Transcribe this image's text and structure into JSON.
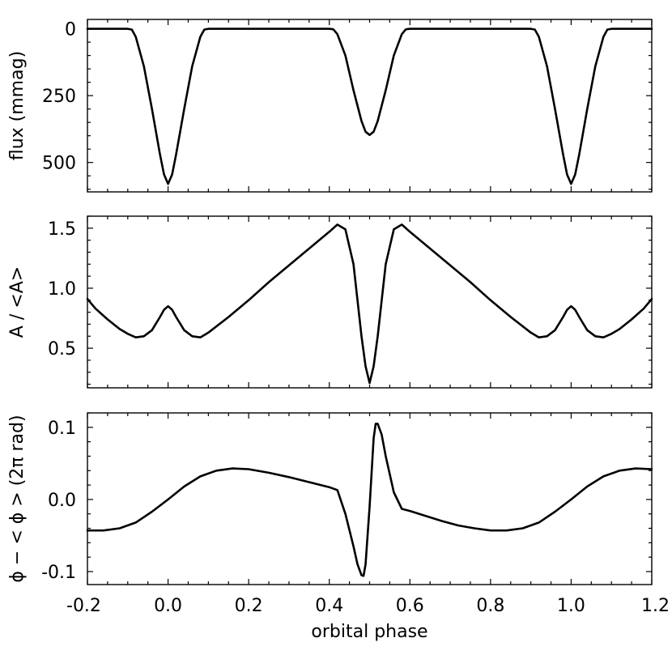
{
  "chart_data": [
    {
      "type": "line",
      "ylabel": "flux (mmag)",
      "xlim": [
        -0.2,
        1.2
      ],
      "ylim": [
        610,
        -35
      ],
      "y_inverted": true,
      "x_ticks": [
        -0.2,
        0.0,
        0.2,
        0.4,
        0.6,
        0.8,
        1.0,
        1.2
      ],
      "y_ticks": [
        0,
        250,
        500
      ],
      "y_tick_labels": [
        "0",
        "250",
        "500"
      ],
      "series": [
        {
          "x": [
            -0.2,
            -0.1,
            -0.09,
            -0.08,
            -0.06,
            -0.04,
            -0.02,
            -0.01,
            0.0,
            0.01,
            0.02,
            0.04,
            0.06,
            0.08,
            0.09,
            0.1,
            0.2,
            0.3,
            0.4,
            0.41,
            0.42,
            0.44,
            0.46,
            0.48,
            0.49,
            0.5,
            0.51,
            0.52,
            0.54,
            0.56,
            0.58,
            0.59,
            0.6,
            0.7,
            0.8,
            0.9,
            0.91,
            0.92,
            0.94,
            0.96,
            0.98,
            0.99,
            1.0,
            1.01,
            1.02,
            1.04,
            1.06,
            1.08,
            1.09,
            1.1,
            1.2
          ],
          "y": [
            0,
            0,
            3,
            30,
            140,
            300,
            470,
            545,
            580,
            545,
            470,
            300,
            140,
            30,
            3,
            0,
            0,
            0,
            0,
            2,
            20,
            100,
            230,
            345,
            385,
            397,
            385,
            345,
            230,
            100,
            20,
            2,
            0,
            0,
            0,
            0,
            3,
            30,
            140,
            300,
            470,
            545,
            580,
            545,
            470,
            300,
            140,
            30,
            3,
            0,
            0
          ]
        }
      ]
    },
    {
      "type": "line",
      "ylabel": "A / <A>",
      "xlim": [
        -0.2,
        1.2
      ],
      "ylim": [
        0.17,
        1.6
      ],
      "x_ticks": [
        -0.2,
        0.0,
        0.2,
        0.4,
        0.6,
        0.8,
        1.0,
        1.2
      ],
      "y_ticks": [
        0.5,
        1.0,
        1.5
      ],
      "y_tick_labels": [
        "0.5",
        "1.0",
        "1.5"
      ],
      "series": [
        {
          "x": [
            -0.2,
            -0.18,
            -0.15,
            -0.12,
            -0.1,
            -0.08,
            -0.06,
            -0.04,
            -0.02,
            -0.01,
            0.0,
            0.01,
            0.02,
            0.04,
            0.06,
            0.08,
            0.1,
            0.15,
            0.2,
            0.25,
            0.3,
            0.35,
            0.4,
            0.42,
            0.44,
            0.46,
            0.48,
            0.49,
            0.5,
            0.51,
            0.52,
            0.54,
            0.56,
            0.58,
            0.6,
            0.65,
            0.7,
            0.75,
            0.8,
            0.85,
            0.9,
            0.92,
            0.94,
            0.96,
            0.98,
            0.99,
            1.0,
            1.01,
            1.02,
            1.04,
            1.06,
            1.08,
            1.1,
            1.12,
            1.15,
            1.18,
            1.2
          ],
          "y": [
            0.91,
            0.83,
            0.74,
            0.66,
            0.62,
            0.59,
            0.6,
            0.65,
            0.76,
            0.82,
            0.85,
            0.82,
            0.76,
            0.65,
            0.6,
            0.59,
            0.63,
            0.76,
            0.9,
            1.05,
            1.19,
            1.33,
            1.47,
            1.53,
            1.49,
            1.2,
            0.6,
            0.35,
            0.21,
            0.35,
            0.6,
            1.2,
            1.49,
            1.53,
            1.47,
            1.33,
            1.19,
            1.05,
            0.9,
            0.76,
            0.63,
            0.59,
            0.6,
            0.65,
            0.76,
            0.82,
            0.85,
            0.82,
            0.76,
            0.65,
            0.6,
            0.59,
            0.62,
            0.66,
            0.74,
            0.83,
            0.91
          ]
        }
      ]
    },
    {
      "type": "line",
      "ylabel": "ϕ − < ϕ >  (2π rad)",
      "xlabel": "orbital phase",
      "xlim": [
        -0.2,
        1.2
      ],
      "ylim": [
        -0.118,
        0.12
      ],
      "x_ticks": [
        -0.2,
        0.0,
        0.2,
        0.4,
        0.6,
        0.8,
        1.0,
        1.2
      ],
      "x_tick_labels": [
        "-0.2",
        "0.0",
        "0.2",
        "0.4",
        "0.6",
        "0.8",
        "1.0",
        "1.2"
      ],
      "y_ticks": [
        -0.1,
        0.0,
        0.1
      ],
      "y_tick_labels": [
        "-0.1",
        "0.0",
        "0.1"
      ],
      "series": [
        {
          "x": [
            -0.2,
            -0.16,
            -0.12,
            -0.08,
            -0.04,
            0.0,
            0.04,
            0.08,
            0.12,
            0.16,
            0.2,
            0.25,
            0.3,
            0.35,
            0.4,
            0.42,
            0.44,
            0.46,
            0.47,
            0.48,
            0.485,
            0.49,
            0.5,
            0.51,
            0.515,
            0.52,
            0.53,
            0.54,
            0.56,
            0.58,
            0.6,
            0.64,
            0.68,
            0.72,
            0.76,
            0.8,
            0.84,
            0.88,
            0.92,
            0.96,
            1.0,
            1.04,
            1.08,
            1.12,
            1.16,
            1.2
          ],
          "y": [
            -0.043,
            -0.043,
            -0.04,
            -0.032,
            -0.017,
            0.0,
            0.018,
            0.032,
            0.04,
            0.043,
            0.042,
            0.037,
            0.031,
            0.024,
            0.017,
            0.013,
            -0.02,
            -0.065,
            -0.09,
            -0.105,
            -0.106,
            -0.09,
            -0.01,
            0.085,
            0.105,
            0.105,
            0.09,
            0.06,
            0.01,
            -0.013,
            -0.016,
            -0.023,
            -0.03,
            -0.036,
            -0.04,
            -0.043,
            -0.043,
            -0.04,
            -0.032,
            -0.017,
            0.0,
            0.018,
            0.032,
            0.04,
            0.043,
            0.042
          ]
        }
      ]
    }
  ]
}
